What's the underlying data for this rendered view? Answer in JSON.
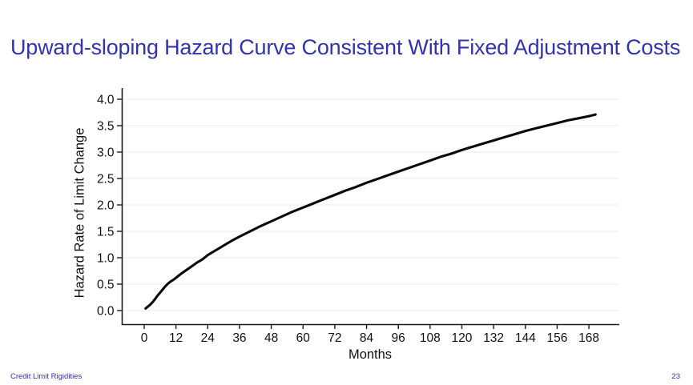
{
  "slide": {
    "title": "Upward-sloping Hazard Curve Consistent With Fixed Adjustment Costs"
  },
  "footer": {
    "left": "Credit Limit Rigidities",
    "page": "23"
  },
  "colors": {
    "title": "#3333b2",
    "footer": "#3333b2",
    "curve": "#0a0a0a",
    "axis": "#1a1a1a",
    "grid": "#ebebeb",
    "tick_text": "#111111"
  },
  "chart_data": {
    "type": "line",
    "title": "",
    "xlabel": "Months",
    "ylabel": "Hazard Rate of Limit Change",
    "xlim": [
      0,
      170
    ],
    "ylim": [
      0.0,
      4.0
    ],
    "grid": "horizontal",
    "legend": "none",
    "x_ticks": [
      0,
      12,
      24,
      36,
      48,
      60,
      72,
      84,
      96,
      108,
      120,
      132,
      144,
      156,
      168
    ],
    "y_ticks": [
      0,
      0.5,
      1,
      1.5,
      2,
      2.5,
      3,
      3.5,
      4
    ],
    "y_tick_labels": [
      "0.0",
      "0.5",
      "1.0",
      "1.5",
      "2.0",
      "2.5",
      "3.0",
      "3.5",
      "4.0"
    ],
    "series": [
      {
        "name": "Hazard Rate of Limit Change",
        "points": [
          [
            0.5,
            0.04
          ],
          [
            1,
            0.06
          ],
          [
            2,
            0.1
          ],
          [
            3,
            0.15
          ],
          [
            4,
            0.21
          ],
          [
            5,
            0.28
          ],
          [
            6,
            0.34
          ],
          [
            7,
            0.4
          ],
          [
            8,
            0.46
          ],
          [
            9,
            0.51
          ],
          [
            10,
            0.55
          ],
          [
            11,
            0.58
          ],
          [
            12,
            0.62
          ],
          [
            13,
            0.66
          ],
          [
            14,
            0.7
          ],
          [
            16,
            0.77
          ],
          [
            18,
            0.84
          ],
          [
            20,
            0.91
          ],
          [
            22,
            0.97
          ],
          [
            24,
            1.05
          ],
          [
            26,
            1.11
          ],
          [
            28,
            1.17
          ],
          [
            30,
            1.23
          ],
          [
            33,
            1.32
          ],
          [
            36,
            1.4
          ],
          [
            40,
            1.5
          ],
          [
            44,
            1.6
          ],
          [
            48,
            1.69
          ],
          [
            52,
            1.78
          ],
          [
            56,
            1.87
          ],
          [
            60,
            1.95
          ],
          [
            64,
            2.03
          ],
          [
            68,
            2.11
          ],
          [
            72,
            2.19
          ],
          [
            76,
            2.27
          ],
          [
            80,
            2.34
          ],
          [
            84,
            2.42
          ],
          [
            88,
            2.49
          ],
          [
            92,
            2.56
          ],
          [
            96,
            2.63
          ],
          [
            100,
            2.7
          ],
          [
            104,
            2.77
          ],
          [
            108,
            2.84
          ],
          [
            112,
            2.91
          ],
          [
            116,
            2.97
          ],
          [
            120,
            3.04
          ],
          [
            124,
            3.1
          ],
          [
            128,
            3.16
          ],
          [
            132,
            3.22
          ],
          [
            136,
            3.28
          ],
          [
            140,
            3.34
          ],
          [
            144,
            3.4
          ],
          [
            148,
            3.45
          ],
          [
            152,
            3.5
          ],
          [
            156,
            3.55
          ],
          [
            160,
            3.6
          ],
          [
            164,
            3.64
          ],
          [
            168,
            3.68
          ],
          [
            170.5,
            3.71
          ]
        ]
      }
    ]
  }
}
